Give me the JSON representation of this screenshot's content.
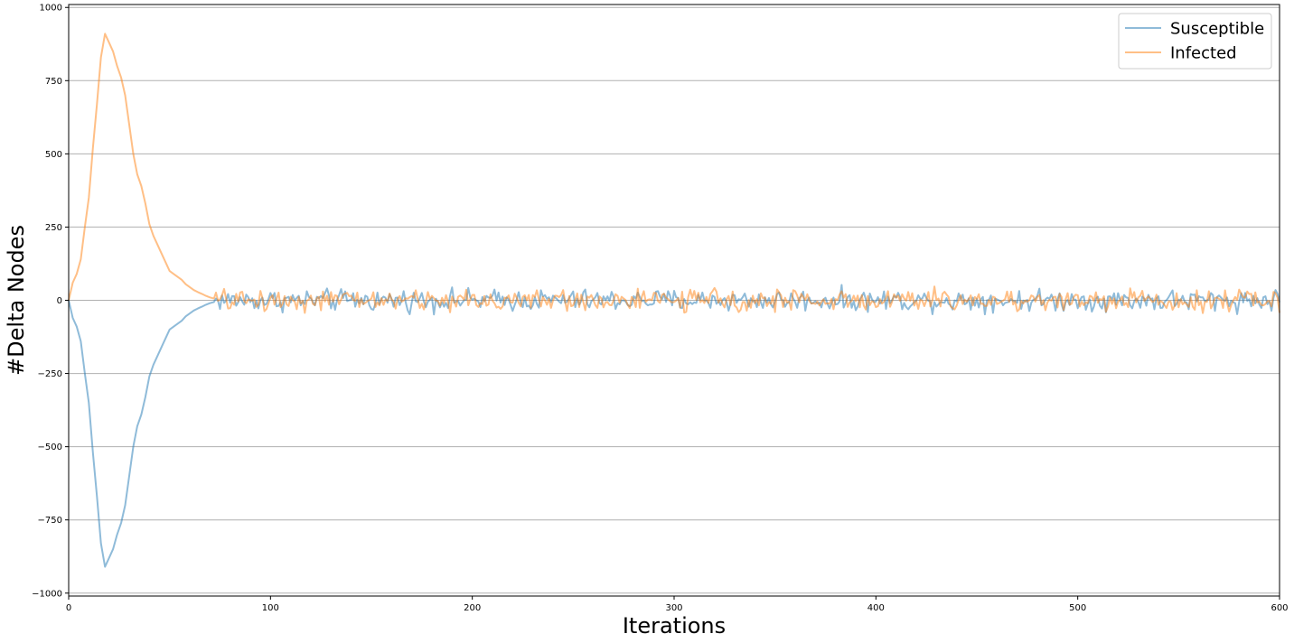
{
  "chart_data": {
    "type": "line",
    "xlabel": "Iterations",
    "ylabel": "#Delta Nodes",
    "xlim": [
      0,
      600
    ],
    "ylim": [
      -1010,
      1010
    ],
    "xticks": [
      0,
      100,
      200,
      300,
      400,
      500,
      600
    ],
    "yticks": [
      -1000,
      -750,
      -500,
      -250,
      0,
      250,
      500,
      750,
      1000
    ],
    "xtick_labels": [
      "0",
      "100",
      "200",
      "300",
      "400",
      "500",
      "600"
    ],
    "ytick_labels": [
      "−1000",
      "−750",
      "−500",
      "−250",
      "0",
      "250",
      "500",
      "750",
      "1000"
    ],
    "grid": "horizontal",
    "legend_position": "top-right",
    "series": [
      {
        "name": "Susceptible",
        "color": "#1f77b4",
        "x": [
          0,
          2,
          4,
          6,
          8,
          10,
          12,
          14,
          16,
          18,
          20,
          22,
          24,
          26,
          28,
          30,
          32,
          34,
          36,
          38,
          40,
          42,
          44,
          46,
          48,
          50,
          52,
          54,
          56,
          58,
          60,
          62,
          64,
          66,
          68,
          70,
          72
        ],
        "values": [
          0,
          -60,
          -90,
          -140,
          -250,
          -350,
          -520,
          -670,
          -830,
          -910,
          -880,
          -850,
          -800,
          -760,
          -700,
          -600,
          -500,
          -430,
          -390,
          -330,
          -260,
          -220,
          -190,
          -160,
          -130,
          -100,
          -90,
          -80,
          -70,
          -55,
          -45,
          -35,
          -28,
          -22,
          -15,
          -10,
          -6
        ]
      },
      {
        "name": "Infected",
        "color": "#ff7f0e",
        "x": [
          0,
          2,
          4,
          6,
          8,
          10,
          12,
          14,
          16,
          18,
          20,
          22,
          24,
          26,
          28,
          30,
          32,
          34,
          36,
          38,
          40,
          42,
          44,
          46,
          48,
          50,
          52,
          54,
          56,
          58,
          60,
          62,
          64,
          66,
          68,
          70,
          72
        ],
        "values": [
          0,
          60,
          90,
          140,
          250,
          350,
          520,
          670,
          830,
          910,
          880,
          850,
          800,
          760,
          700,
          600,
          500,
          430,
          390,
          330,
          260,
          220,
          190,
          160,
          130,
          100,
          90,
          80,
          70,
          55,
          45,
          35,
          28,
          22,
          15,
          10,
          6
        ]
      }
    ],
    "noise_tail": {
      "x_start": 72,
      "x_end": 600,
      "step": 1,
      "amplitude": 30,
      "mean": 0
    }
  }
}
